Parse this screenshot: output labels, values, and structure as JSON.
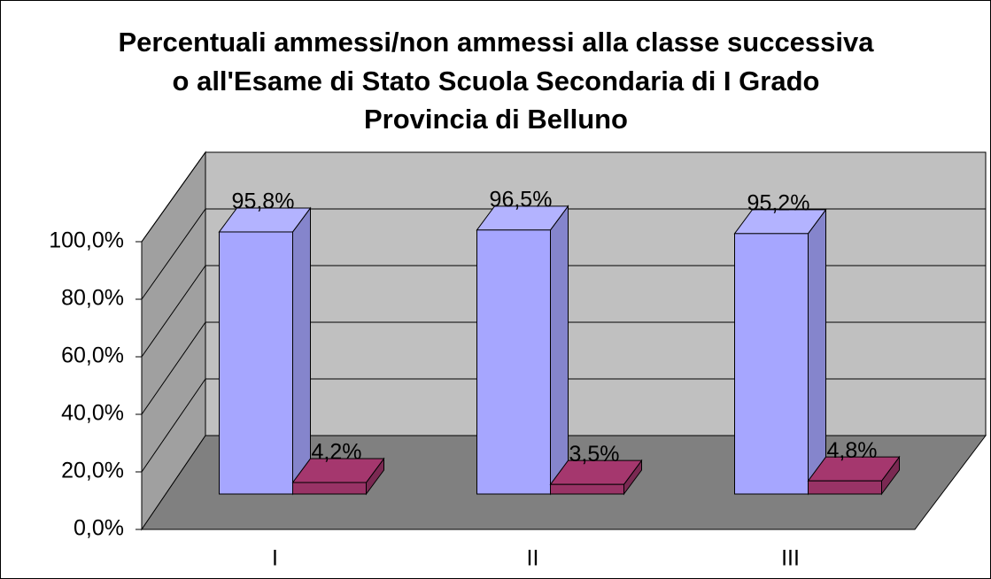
{
  "chart_data": {
    "type": "bar3d",
    "title": [
      "Percentuali ammessi/non ammessi alla classe successiva",
      "o all'Esame di Stato Scuola Secondaria di I Grado",
      "Provincia di Belluno"
    ],
    "categories": [
      "I",
      "II",
      "III"
    ],
    "series": [
      {
        "color": "#a6a6ff",
        "values": [
          95.8,
          96.5,
          95.2
        ],
        "value_labels": [
          "95,8%",
          "96,5%",
          "95,2%"
        ]
      },
      {
        "color": "#993366",
        "values": [
          4.2,
          3.5,
          4.8
        ],
        "value_labels": [
          "4,2%",
          "3,5%",
          "4,8%"
        ]
      }
    ],
    "ylim": [
      0,
      100
    ],
    "yticks": [
      {
        "value": 0,
        "label": "0,0%"
      },
      {
        "value": 20,
        "label": "20,0%"
      },
      {
        "value": 40,
        "label": "40,0%"
      },
      {
        "value": 60,
        "label": "60,0%"
      },
      {
        "value": 80,
        "label": "80,0%"
      },
      {
        "value": 100,
        "label": "100,0%"
      }
    ],
    "grid": true
  }
}
